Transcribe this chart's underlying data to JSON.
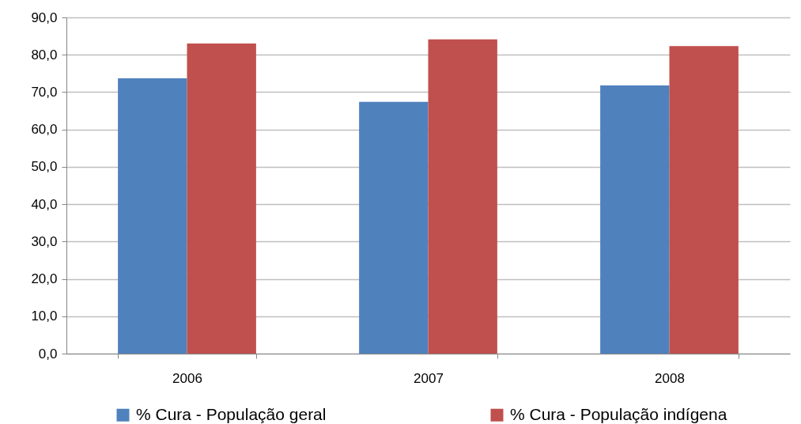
{
  "chart_data": {
    "type": "bar",
    "categories": [
      "2006",
      "2007",
      "2008"
    ],
    "series": [
      {
        "name": "% Cura - População geral",
        "color": "#4f81bd",
        "values": [
          73.7,
          67.4,
          71.8
        ]
      },
      {
        "name": "% Cura - População indígena",
        "color": "#c0504d",
        "values": [
          83.0,
          84.1,
          82.3
        ]
      }
    ],
    "ylim": [
      0,
      90
    ],
    "yticks": [
      {
        "value": 0,
        "label": "0,0"
      },
      {
        "value": 10,
        "label": "10,0"
      },
      {
        "value": 20,
        "label": "20,0"
      },
      {
        "value": 30,
        "label": "30,0"
      },
      {
        "value": 40,
        "label": "40,0"
      },
      {
        "value": 50,
        "label": "50,0"
      },
      {
        "value": 60,
        "label": "60,0"
      },
      {
        "value": 70,
        "label": "70,0"
      },
      {
        "value": 80,
        "label": "80,0"
      },
      {
        "value": 90,
        "label": "90,0"
      }
    ],
    "grid": "y",
    "legend": "bottom"
  }
}
